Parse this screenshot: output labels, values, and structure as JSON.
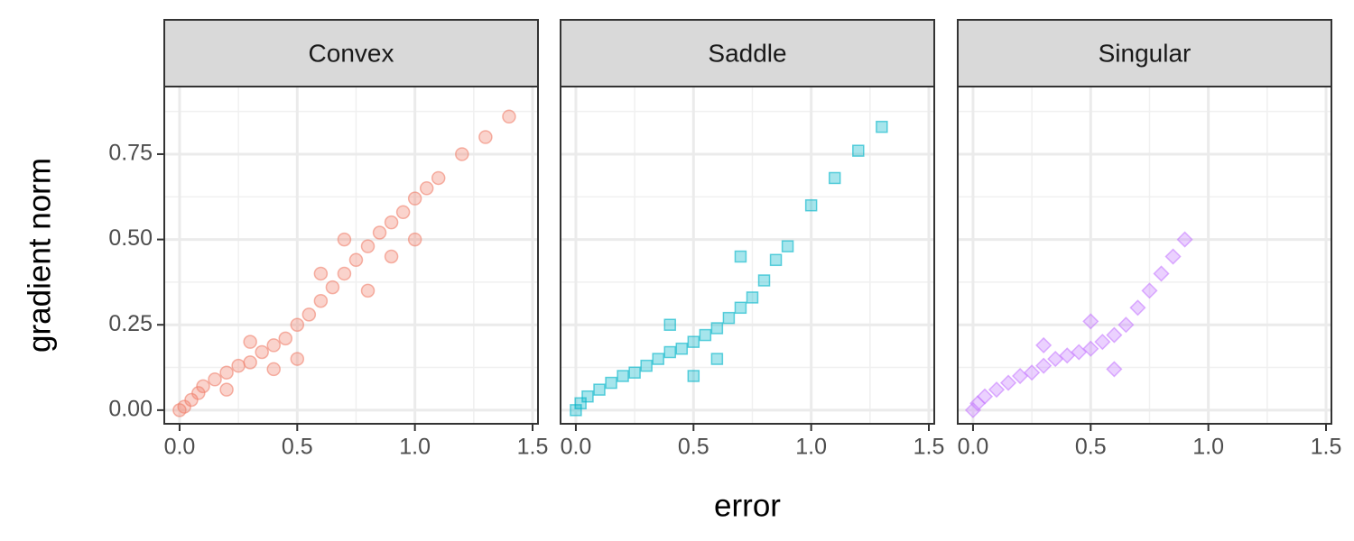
{
  "chart_data": {
    "type": "scatter",
    "xlabel": "error",
    "ylabel": "gradient norm",
    "xlim": [
      -0.065,
      1.523
    ],
    "ylim": [
      -0.04,
      0.948
    ],
    "xticks": [
      {
        "value": 0,
        "label": "0.0"
      },
      {
        "value": 0.5,
        "label": "0.5"
      },
      {
        "value": 1,
        "label": "1.0"
      },
      {
        "value": 1.5,
        "label": "1.5"
      }
    ],
    "yticks": [
      {
        "value": 0,
        "label": "0.00"
      },
      {
        "value": 0.25,
        "label": "0.25"
      },
      {
        "value": 0.5,
        "label": "0.50"
      },
      {
        "value": 0.75,
        "label": "0.75"
      }
    ],
    "x_minor_grid": [
      0.25,
      0.75,
      1.25
    ],
    "y_minor_grid": [
      0.125,
      0.375,
      0.625,
      0.875
    ],
    "grid": true,
    "facets": [
      {
        "title": "Convex",
        "color": "#f0826e",
        "marker": "circle",
        "x": [
          0,
          0.02,
          0.05,
          0.08,
          0.1,
          0.15,
          0.2,
          0.25,
          0.3,
          0.35,
          0.4,
          0.45,
          0.5,
          0.55,
          0.6,
          0.65,
          0.7,
          0.75,
          0.8,
          0.85,
          0.9,
          0.95,
          1.0,
          1.05,
          1.1,
          1.2,
          1.3,
          1.4,
          0.3,
          0.5,
          0.6,
          0.7,
          0.8,
          0.9,
          1.0,
          0.4,
          0.2
        ],
        "y": [
          0,
          0.01,
          0.03,
          0.05,
          0.07,
          0.09,
          0.11,
          0.13,
          0.14,
          0.17,
          0.19,
          0.21,
          0.25,
          0.28,
          0.32,
          0.36,
          0.4,
          0.44,
          0.48,
          0.52,
          0.55,
          0.58,
          0.62,
          0.65,
          0.68,
          0.75,
          0.8,
          0.86,
          0.2,
          0.15,
          0.4,
          0.5,
          0.35,
          0.45,
          0.5,
          0.12,
          0.06
        ]
      },
      {
        "title": "Saddle",
        "color": "#00b4c8",
        "marker": "square",
        "x": [
          0,
          0.02,
          0.05,
          0.1,
          0.15,
          0.2,
          0.25,
          0.3,
          0.35,
          0.4,
          0.45,
          0.5,
          0.55,
          0.6,
          0.65,
          0.7,
          0.75,
          0.8,
          0.85,
          0.9,
          1.0,
          1.1,
          1.2,
          1.3,
          0.5,
          0.6,
          0.7,
          0.4
        ],
        "y": [
          0,
          0.02,
          0.04,
          0.06,
          0.08,
          0.1,
          0.11,
          0.13,
          0.15,
          0.17,
          0.18,
          0.2,
          0.22,
          0.24,
          0.27,
          0.3,
          0.33,
          0.38,
          0.44,
          0.48,
          0.6,
          0.68,
          0.76,
          0.83,
          0.1,
          0.15,
          0.45,
          0.25
        ]
      },
      {
        "title": "Singular",
        "color": "#c77cff",
        "marker": "diamond",
        "x": [
          0,
          0.02,
          0.05,
          0.1,
          0.15,
          0.2,
          0.25,
          0.3,
          0.35,
          0.4,
          0.45,
          0.5,
          0.55,
          0.6,
          0.65,
          0.7,
          0.75,
          0.8,
          0.85,
          0.9,
          0.5,
          0.6,
          0.3
        ],
        "y": [
          0,
          0.02,
          0.04,
          0.06,
          0.08,
          0.1,
          0.11,
          0.13,
          0.15,
          0.16,
          0.17,
          0.18,
          0.2,
          0.22,
          0.25,
          0.3,
          0.35,
          0.4,
          0.45,
          0.5,
          0.26,
          0.12,
          0.19
        ]
      }
    ]
  }
}
